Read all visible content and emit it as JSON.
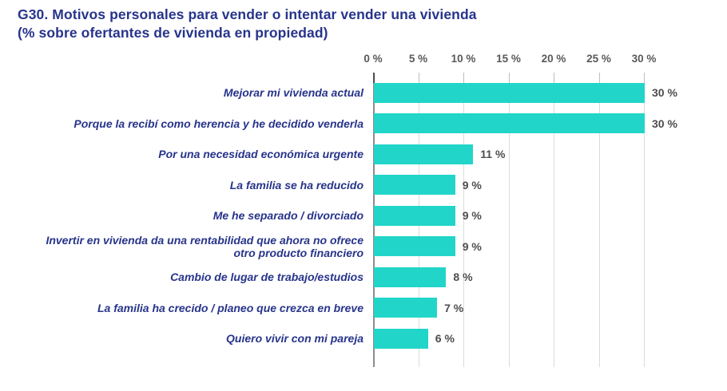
{
  "title": {
    "line1": "G30. Motivos personales para vender o intentar vender una vivienda",
    "line2": "(% sobre ofertantes de vivienda en propiedad)"
  },
  "colors": {
    "navy": "#27348b",
    "teal": "#21d5c9",
    "axis_text": "#595959",
    "value_text": "#4d4d4d",
    "gridline": "#dbdbdb",
    "zero_line": "#8c8c8c"
  },
  "chart_data": {
    "type": "bar",
    "orientation": "horizontal",
    "title": "G30. Motivos personales para vender o intentar vender una vivienda (% sobre ofertantes de vivienda en propiedad)",
    "categories": [
      "Mejorar mi vivienda actual",
      "Porque la recibí como herencia y he decidido venderla",
      "Por una necesidad económica urgente",
      "La familia se ha reducido",
      "Me he separado / divorciado",
      "Invertir en vivienda da una rentabilidad que ahora no ofrece otro producto financiero",
      "Cambio de lugar de trabajo/estudios",
      "La familia ha crecido / planeo que crezca en breve",
      "Quiero vivir con mi pareja"
    ],
    "values": [
      30,
      30,
      11,
      9,
      9,
      9,
      8,
      7,
      6
    ],
    "value_labels": [
      "30 %",
      "30 %",
      "11 %",
      "9 %",
      "9 %",
      "9 %",
      "8 %",
      "7 %",
      "6 %"
    ],
    "x_axis": {
      "position": "top",
      "ticks": [
        0,
        5,
        10,
        15,
        20,
        25,
        30
      ],
      "tick_labels": [
        "0 %",
        "5 %",
        "10 %",
        "15 %",
        "20 %",
        "25 %",
        "30 %"
      ],
      "min": 0,
      "max": 30
    },
    "grid": true,
    "legend": false
  }
}
